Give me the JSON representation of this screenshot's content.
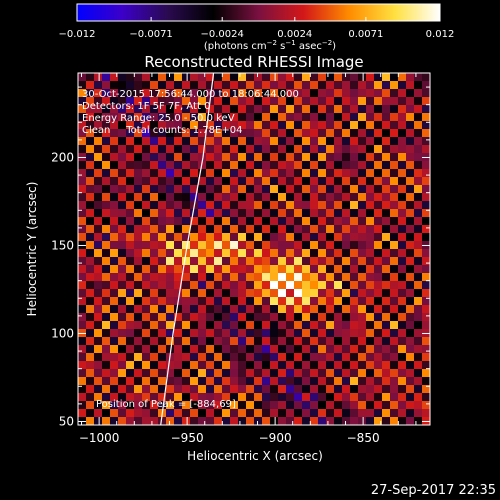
{
  "chart_data": {
    "type": "heatmap",
    "title": "Reconstructed RHESSI Image",
    "xlabel": "Heliocentric X (arcsec)",
    "ylabel": "Heliocentric Y (arcsec)",
    "xlim": [
      -1012,
      -812
    ],
    "ylim": [
      48,
      248
    ],
    "x_ticks": [
      -1000,
      -950,
      -900,
      -850
    ],
    "x_tick_labels": [
      "−1000",
      "−950",
      "−900",
      "−850"
    ],
    "y_ticks": [
      50,
      100,
      150,
      200
    ],
    "y_tick_labels": [
      "50",
      "100",
      "150",
      "200"
    ],
    "colorbar": {
      "min": -0.012,
      "max": 0.012,
      "ticks": [
        -0.012,
        -0.0071,
        -0.0024,
        0.0024,
        0.0071,
        0.012
      ],
      "tick_labels": [
        "−0.012",
        "−0.0071",
        "−0.0024",
        "0.0024",
        "0.0071",
        "0.012"
      ],
      "units_prefix": "(photons cm",
      "units_exp1": "−2",
      "units_mid": " s",
      "units_exp2": "−1",
      "units_mid2": " asec",
      "units_exp3": "−2",
      "units_suffix": ")",
      "colormap": [
        "#0000ff",
        "#3c00c8",
        "#2a0a50",
        "#000000",
        "#7a1040",
        "#d41818",
        "#ff8c00",
        "#ffe040",
        "#ffffff"
      ]
    },
    "annotations": [
      "30-Oct-2015 17:56:44.000 to 18:06:44.000",
      "Detectors: 1F 5F 7F, Att 0",
      "Energy Range: 25.0 - 50.0 keV",
      "Clean     Total counts: 1.78E+04"
    ],
    "peak_label": "Position of Peak = [-884,69]",
    "peak_position": [
      -884,
      69
    ],
    "limb_curve": [
      [
        -965,
        48
      ],
      [
        -958,
        100
      ],
      [
        -950,
        150
      ],
      [
        -941,
        200
      ],
      [
        -935,
        248
      ]
    ],
    "sources": [
      {
        "x": -938,
        "y": 147,
        "value": 0.0095
      },
      {
        "x": -893,
        "y": 128,
        "value": 0.01
      }
    ],
    "grid": false
  },
  "footer": {
    "date": "27-Sep-2017 22:35"
  }
}
